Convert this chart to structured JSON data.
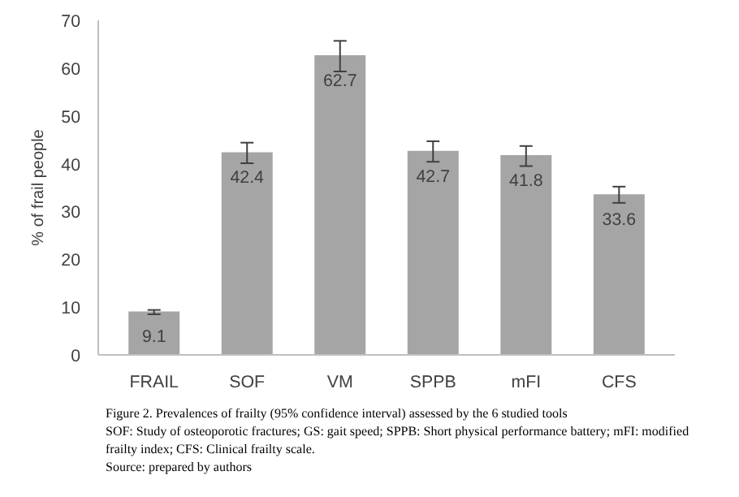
{
  "chart_data": {
    "type": "bar",
    "ylabel": "% of frail people",
    "categories": [
      "FRAIL",
      "SOF",
      "VM",
      "SPPB",
      "mFI",
      "CFS"
    ],
    "values": [
      9.1,
      42.4,
      62.7,
      42.7,
      41.8,
      33.6
    ],
    "errors": [
      [
        8.5,
        9.4
      ],
      [
        40.1,
        44.4
      ],
      [
        59.3,
        65.7
      ],
      [
        40.4,
        44.7
      ],
      [
        39.5,
        43.7
      ],
      [
        31.8,
        35.2
      ]
    ],
    "color": "#a5a5a5",
    "data_labels": true,
    "grid": false,
    "ylim": [
      0,
      70
    ],
    "yticks": [
      0,
      10,
      20,
      30,
      40,
      50,
      60,
      70
    ],
    "annotations": [
      "Figure 2. Prevalences of frailty (95% confidence interval) assessed by the 6 studied tools",
      "SOF: Study of osteoporotic fractures; GS: gait speed; SPPB: Short physical performance battery; mFI: modified frailty index; CFS: Clinical frailty scale.",
      "Source: prepared by authors"
    ]
  }
}
